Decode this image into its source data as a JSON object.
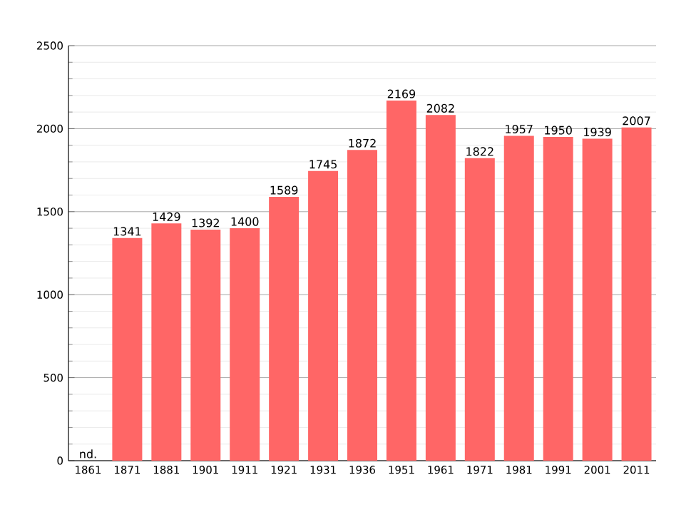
{
  "chart_data": {
    "type": "bar",
    "categories": [
      "1861",
      "1871",
      "1881",
      "1901",
      "1911",
      "1921",
      "1931",
      "1936",
      "1951",
      "1961",
      "1971",
      "1981",
      "1991",
      "2001",
      "2011"
    ],
    "values": [
      null,
      1341,
      1429,
      1392,
      1400,
      1589,
      1745,
      1872,
      2169,
      2082,
      1822,
      1957,
      1950,
      1939,
      2007
    ],
    "color": "#ff6666",
    "ylim": [
      0,
      2500
    ],
    "yticks": [
      0,
      500,
      1000,
      1500,
      2000,
      2500
    ],
    "grid": "y",
    "data_labels": true,
    "annotations": [
      "nd."
    ]
  }
}
